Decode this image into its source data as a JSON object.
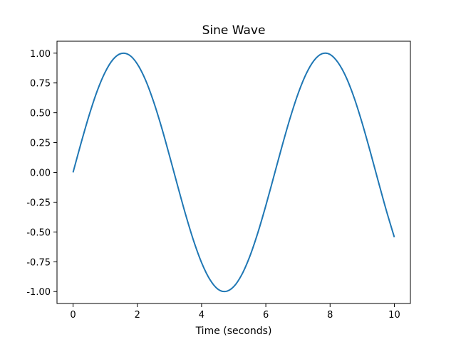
{
  "chart_data": {
    "type": "line",
    "title": "Sine Wave",
    "xlabel": "Time (seconds)",
    "ylabel": "",
    "xlim": [
      -0.5,
      10.5
    ],
    "ylim": [
      -1.1,
      1.1
    ],
    "xticks": [
      0,
      2,
      4,
      6,
      8,
      10
    ],
    "xtick_labels": [
      "0",
      "2",
      "4",
      "6",
      "8",
      "10"
    ],
    "yticks": [
      -1.0,
      -0.75,
      -0.5,
      -0.25,
      0.0,
      0.25,
      0.5,
      0.75,
      1.0
    ],
    "ytick_labels": [
      "-1.00",
      "-0.75",
      "-0.50",
      "-0.25",
      "0.00",
      "0.25",
      "0.50",
      "0.75",
      "1.00"
    ],
    "grid": false,
    "legend": "none",
    "series": [
      {
        "color": "#1f77b4",
        "x": [
          0,
          0.25,
          0.5,
          0.75,
          1.0,
          1.25,
          1.5,
          1.75,
          2.0,
          2.25,
          2.5,
          2.75,
          3.0,
          3.25,
          3.5,
          3.75,
          4.0,
          4.25,
          4.5,
          4.75,
          5.0,
          5.25,
          5.5,
          5.75,
          6.0,
          6.25,
          6.5,
          6.75,
          7.0,
          7.25,
          7.5,
          7.75,
          8.0,
          8.25,
          8.5,
          8.75,
          9.0,
          9.25,
          9.5,
          9.75,
          10.0
        ],
        "y": [
          0.0,
          0.247,
          0.479,
          0.682,
          0.841,
          0.949,
          0.997,
          0.984,
          0.909,
          0.778,
          0.598,
          0.382,
          0.141,
          -0.108,
          -0.351,
          -0.572,
          -0.757,
          -0.895,
          -0.978,
          -0.999,
          -0.959,
          -0.859,
          -0.706,
          -0.508,
          -0.279,
          -0.033,
          0.215,
          0.45,
          0.657,
          0.823,
          0.938,
          0.995,
          0.989,
          0.92,
          0.798,
          0.625,
          0.412,
          0.174,
          -0.075,
          -0.319,
          -0.544
        ]
      }
    ]
  }
}
